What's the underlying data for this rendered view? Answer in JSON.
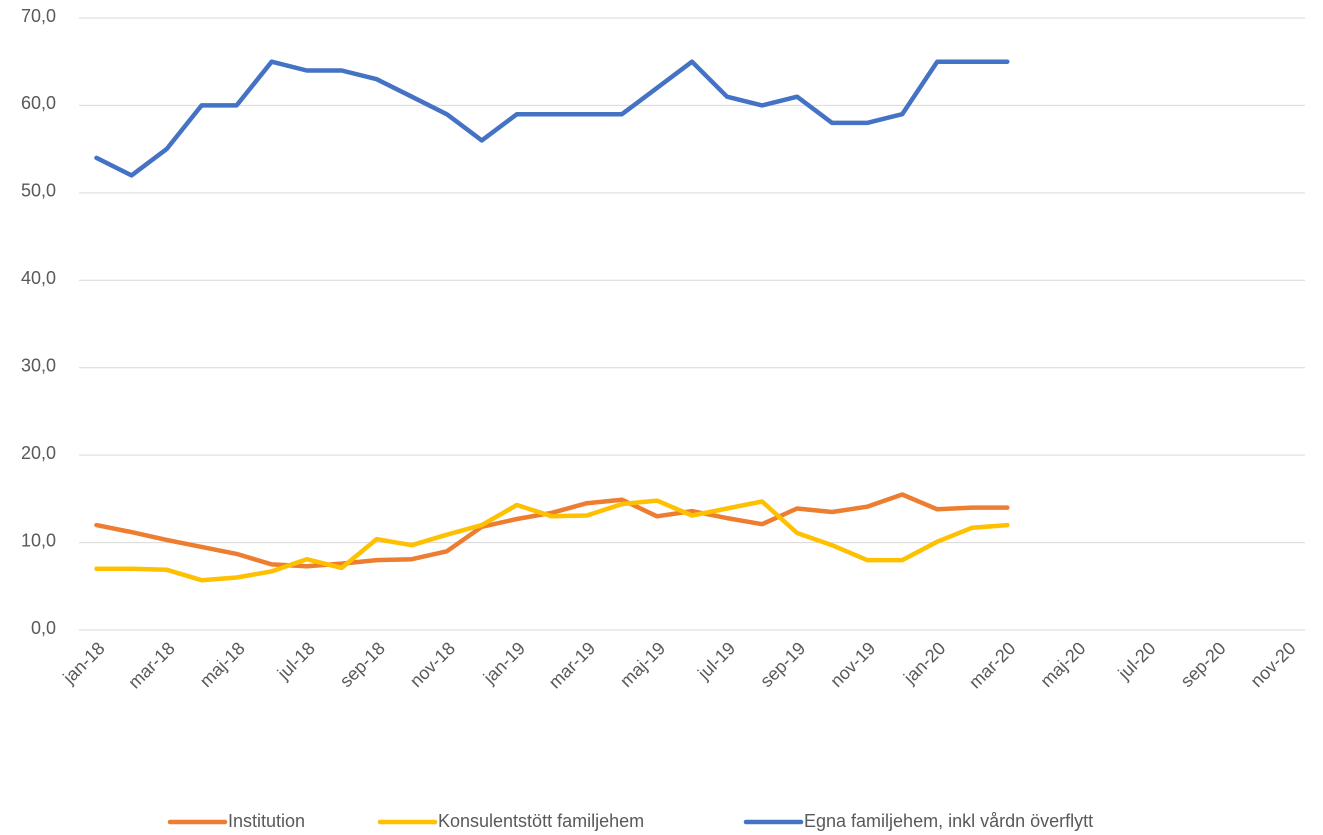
{
  "chart_data": {
    "type": "line",
    "categories": [
      "jan-18",
      null,
      "mar-18",
      null,
      "maj-18",
      null,
      "jul-18",
      null,
      "sep-18",
      null,
      "nov-18",
      null,
      "jan-19",
      null,
      "mar-19",
      null,
      "maj-19",
      null,
      "jul-19",
      null,
      "sep-19",
      null,
      "nov-19",
      null,
      "jan-20",
      null,
      "mar-20",
      null,
      "maj-20",
      null,
      "jul-20",
      null,
      "sep-20",
      null,
      "nov-20"
    ],
    "series": [
      {
        "name": "Institution",
        "color": "#ED7D31",
        "values": [
          12.0,
          11.2,
          10.3,
          9.5,
          8.7,
          7.5,
          7.3,
          7.6,
          8.0,
          8.1,
          9.0,
          11.8,
          12.7,
          13.4,
          14.5,
          14.9,
          13.0,
          13.6,
          12.8,
          12.1,
          13.9,
          13.5,
          14.1,
          15.5,
          13.8,
          14.0,
          14.0,
          null,
          null,
          null,
          null,
          null,
          null,
          null,
          null
        ]
      },
      {
        "name": "Konsulentstött familjehem",
        "color": "#FFC000",
        "values": [
          7.0,
          7.0,
          6.9,
          5.7,
          6.0,
          6.7,
          8.1,
          7.1,
          10.4,
          9.7,
          10.9,
          12.0,
          14.3,
          13.0,
          13.1,
          14.4,
          14.8,
          13.1,
          13.9,
          14.7,
          11.1,
          9.7,
          8.0,
          8.0,
          10.1,
          11.7,
          12.0,
          null,
          null,
          null,
          null,
          null,
          null,
          null,
          null
        ]
      },
      {
        "name": "Egna familjehem, inkl vårdn överflytt",
        "color": "#4472C4",
        "values": [
          54,
          52,
          55,
          60,
          60,
          65,
          64,
          64,
          63,
          61,
          59,
          56,
          59,
          59,
          59,
          59,
          62,
          65,
          61,
          60,
          61,
          58,
          58,
          59,
          65,
          65,
          65,
          null,
          null,
          null,
          null,
          null,
          null,
          null,
          null
        ]
      }
    ],
    "ylim": [
      0,
      70
    ],
    "yticks": [
      {
        "value": 0,
        "label": "0,0"
      },
      {
        "value": 10,
        "label": "10,0"
      },
      {
        "value": 20,
        "label": "20,0"
      },
      {
        "value": 30,
        "label": "30,0"
      },
      {
        "value": 40,
        "label": "40,0"
      },
      {
        "value": 50,
        "label": "50,0"
      },
      {
        "value": 60,
        "label": "60,0"
      },
      {
        "value": 70,
        "label": "70,0"
      }
    ],
    "grid": true,
    "legend": "bottom"
  }
}
